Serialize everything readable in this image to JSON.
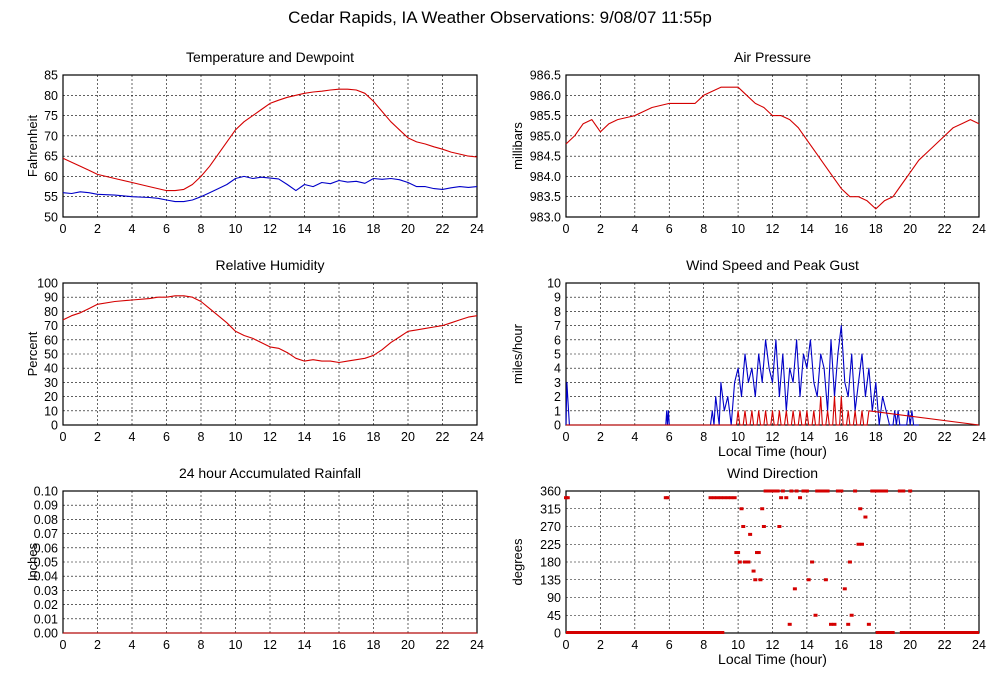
{
  "page_title": "Cedar Rapids, IA Weather Observations: 9/08/07 11:55p",
  "colors": {
    "red": "#d40000",
    "blue": "#0000c8",
    "grid": "#000000"
  },
  "chart_data": [
    {
      "id": "temp",
      "type": "line",
      "title": "Temperature and Dewpoint",
      "xlabel": "",
      "ylabel": "Fahrenheit",
      "xlim": [
        0,
        24
      ],
      "ylim": [
        50,
        85
      ],
      "x_ticks": [
        "0",
        "2",
        "4",
        "6",
        "8",
        "10",
        "12",
        "14",
        "16",
        "18",
        "20",
        "22",
        "24"
      ],
      "y_ticks": [
        "50",
        "55",
        "60",
        "65",
        "70",
        "75",
        "80",
        "85"
      ],
      "grid": true,
      "series": [
        {
          "color": "red",
          "x": [
            0,
            0.5,
            1,
            1.5,
            2,
            3,
            4,
            5,
            5.5,
            6,
            6.5,
            7,
            7.5,
            8,
            8.5,
            9,
            9.5,
            10,
            10.5,
            11,
            11.5,
            12,
            12.5,
            13,
            13.5,
            14,
            14.5,
            15,
            15.5,
            16,
            16.5,
            17,
            17.5,
            18,
            18.5,
            19,
            19.5,
            20,
            20.5,
            21,
            21.5,
            22,
            22.5,
            23,
            23.5,
            24
          ],
          "y": [
            64.5,
            63.5,
            62.5,
            61.5,
            60.5,
            59.5,
            58.5,
            57.5,
            57,
            56.5,
            56.5,
            56.8,
            58,
            60,
            62.5,
            65.5,
            68.5,
            71.5,
            73.5,
            75,
            76.5,
            78,
            78.8,
            79.5,
            80,
            80.5,
            80.8,
            81,
            81.3,
            81.5,
            81.5,
            81.3,
            80.5,
            78.5,
            76,
            73.5,
            71.5,
            69.5,
            68.5,
            68,
            67.3,
            66.7,
            66,
            65.5,
            65,
            64.8
          ]
        },
        {
          "color": "blue",
          "x": [
            0,
            0.5,
            1,
            1.5,
            2,
            3,
            4,
            5,
            5.5,
            6,
            6.5,
            7,
            7.5,
            8,
            8.5,
            9,
            9.5,
            10,
            10.5,
            11,
            11.5,
            12,
            12.5,
            13,
            13.5,
            14,
            14.5,
            15,
            15.5,
            16,
            16.5,
            17,
            17.5,
            18,
            18.5,
            19,
            19.5,
            20,
            20.5,
            21,
            21.5,
            22,
            22.5,
            23,
            23.5,
            24
          ],
          "y": [
            56,
            55.8,
            56.2,
            56,
            55.6,
            55.4,
            55,
            54.8,
            54.6,
            54.2,
            53.8,
            53.8,
            54.2,
            55,
            56,
            57,
            58,
            59.5,
            60,
            59.5,
            59.8,
            59.6,
            59.4,
            58,
            56.5,
            58,
            57.5,
            58.5,
            58.2,
            59,
            58.6,
            58.8,
            58.3,
            59.5,
            59.3,
            59.5,
            59.2,
            58.5,
            57.5,
            57.5,
            57,
            56.8,
            57.2,
            57.5,
            57.3,
            57.5
          ]
        }
      ]
    },
    {
      "id": "pressure",
      "type": "line",
      "title": "Air Pressure",
      "xlabel": "",
      "ylabel": "millibars",
      "xlim": [
        0,
        24
      ],
      "ylim": [
        983.0,
        986.5
      ],
      "x_ticks": [
        "0",
        "2",
        "4",
        "6",
        "8",
        "10",
        "12",
        "14",
        "16",
        "18",
        "20",
        "22",
        "24"
      ],
      "y_ticks": [
        "983.0",
        "983.5",
        "984.0",
        "984.5",
        "985.0",
        "985.5",
        "986.0",
        "986.5"
      ],
      "grid": true,
      "series": [
        {
          "color": "red",
          "x": [
            0,
            0.5,
            1,
            1.5,
            2,
            2.5,
            3,
            4,
            5,
            6,
            7,
            7.5,
            8,
            8.5,
            9,
            9.5,
            10,
            10.5,
            11,
            11.5,
            12,
            12.5,
            13,
            13.5,
            14,
            14.5,
            15,
            15.5,
            16,
            16.5,
            17,
            17.5,
            18,
            18.5,
            19,
            19.5,
            20,
            20.5,
            21,
            21.5,
            22,
            22.5,
            23,
            23.5,
            24
          ],
          "y": [
            984.8,
            985.0,
            985.3,
            985.4,
            985.1,
            985.3,
            985.4,
            985.5,
            985.7,
            985.8,
            985.8,
            985.8,
            986.0,
            986.1,
            986.2,
            986.2,
            986.2,
            986.0,
            985.8,
            985.7,
            985.5,
            985.5,
            985.4,
            985.2,
            984.9,
            984.6,
            984.3,
            984.0,
            983.7,
            983.5,
            983.5,
            983.4,
            983.2,
            983.4,
            983.5,
            983.8,
            984.1,
            984.4,
            984.6,
            984.8,
            985.0,
            985.2,
            985.3,
            985.4,
            985.3
          ]
        }
      ]
    },
    {
      "id": "humidity",
      "type": "line",
      "title": "Relative Humidity",
      "xlabel": "",
      "ylabel": "Percent",
      "xlim": [
        0,
        24
      ],
      "ylim": [
        0,
        100
      ],
      "x_ticks": [
        "0",
        "2",
        "4",
        "6",
        "8",
        "10",
        "12",
        "14",
        "16",
        "18",
        "20",
        "22",
        "24"
      ],
      "y_ticks": [
        "0",
        "10",
        "20",
        "30",
        "40",
        "50",
        "60",
        "70",
        "80",
        "90",
        "100"
      ],
      "grid": true,
      "series": [
        {
          "color": "red",
          "x": [
            0,
            0.5,
            1,
            1.5,
            2,
            3,
            4,
            5,
            5.5,
            6,
            6.5,
            7,
            7.5,
            8,
            8.5,
            9,
            9.5,
            10,
            10.5,
            11,
            11.5,
            12,
            12.5,
            13,
            13.5,
            14,
            14.5,
            15,
            15.5,
            16,
            16.5,
            17,
            17.5,
            18,
            18.5,
            19,
            19.5,
            20,
            20.5,
            21,
            21.5,
            22,
            22.5,
            23,
            23.5,
            24
          ],
          "y": [
            74,
            77,
            79,
            82,
            85,
            87,
            88,
            89,
            90,
            90,
            91,
            91,
            90,
            87,
            82,
            77,
            72,
            66,
            63,
            61,
            58,
            55,
            54,
            51,
            47,
            45,
            46,
            45,
            45,
            44,
            45,
            46,
            47,
            49,
            53,
            58,
            62,
            66,
            67,
            68,
            69,
            70,
            72,
            74,
            76,
            77
          ]
        }
      ]
    },
    {
      "id": "wind",
      "type": "line",
      "title": "Wind Speed and Peak Gust",
      "xlabel": "Local Time (hour)",
      "ylabel": "miles/hour",
      "xlim": [
        0,
        24
      ],
      "ylim": [
        0,
        10
      ],
      "x_ticks": [
        "0",
        "2",
        "4",
        "6",
        "8",
        "10",
        "12",
        "14",
        "16",
        "18",
        "20",
        "22",
        "24"
      ],
      "y_ticks": [
        "0",
        "1",
        "2",
        "3",
        "4",
        "5",
        "6",
        "7",
        "8",
        "9",
        "10"
      ],
      "grid": true,
      "series": [
        {
          "color": "blue",
          "x": [
            0,
            0.05,
            0.1,
            0.2,
            0.25,
            0.5,
            5.8,
            5.85,
            5.9,
            5.95,
            6,
            8.4,
            8.5,
            8.6,
            8.7,
            8.8,
            8.9,
            9,
            9.2,
            9.4,
            9.6,
            9.8,
            10,
            10.2,
            10.4,
            10.6,
            10.8,
            11,
            11.2,
            11.4,
            11.6,
            11.8,
            12,
            12.2,
            12.4,
            12.6,
            12.8,
            13,
            13.2,
            13.4,
            13.6,
            13.8,
            14,
            14.2,
            14.4,
            14.6,
            14.8,
            15,
            15.2,
            15.4,
            15.6,
            15.8,
            16,
            16.2,
            16.4,
            16.6,
            16.8,
            17,
            17.2,
            17.4,
            17.6,
            17.8,
            18,
            18.2,
            18.4,
            18.6,
            18.8,
            19,
            19.1,
            19.2,
            19.3,
            19.4,
            19.8,
            19.9,
            20,
            20.1,
            20.2,
            20.5
          ],
          "y": [
            0,
            3,
            2,
            0,
            0,
            0,
            0,
            1,
            0,
            1,
            0,
            0,
            1,
            0,
            2,
            1,
            0,
            3,
            1,
            2,
            0,
            3,
            4,
            2,
            5,
            3,
            4,
            2,
            5,
            3,
            6,
            4,
            3,
            6,
            2,
            5,
            1,
            4,
            3,
            6,
            2,
            5,
            4,
            6,
            3,
            2,
            5,
            4,
            1,
            6,
            2,
            5,
            7,
            3,
            2,
            5,
            1,
            3,
            5,
            2,
            4,
            1,
            3,
            0,
            2,
            1,
            0,
            0,
            1,
            0,
            1,
            0,
            0,
            1,
            0,
            1,
            0,
            0
          ]
        },
        {
          "color": "red",
          "x": [
            0,
            9.9,
            10,
            10.1,
            10.3,
            10.4,
            10.5,
            10.7,
            10.8,
            10.9,
            11.1,
            11.2,
            11.3,
            11.5,
            11.6,
            11.7,
            11.9,
            12,
            12.1,
            12.3,
            12.4,
            12.5,
            12.7,
            12.8,
            12.9,
            13.1,
            13.2,
            13.3,
            13.5,
            13.6,
            13.7,
            13.9,
            14,
            14.1,
            14.3,
            14.4,
            14.5,
            14.7,
            14.8,
            14.9,
            15.1,
            15.2,
            15.3,
            15.5,
            15.6,
            15.7,
            15.9,
            16,
            16.1,
            16.3,
            16.4,
            16.5,
            16.7,
            16.8,
            16.9,
            17.1,
            17.2,
            17.3,
            17.5,
            17.6,
            24
          ],
          "y": [
            0,
            0,
            1,
            0,
            0,
            1,
            0,
            0,
            1,
            0,
            0,
            1,
            0,
            0,
            1,
            0,
            0,
            1,
            0,
            0,
            1,
            0,
            0,
            1,
            0,
            0,
            1,
            0,
            0,
            1,
            0,
            0,
            1,
            0,
            0,
            1,
            0,
            0,
            2,
            0,
            0,
            1,
            0,
            0,
            2,
            0,
            0,
            2,
            0,
            0,
            1,
            0,
            0,
            1,
            0,
            0,
            1,
            0,
            0,
            1,
            0
          ]
        }
      ]
    },
    {
      "id": "rain",
      "type": "line",
      "title": "24 hour Accumulated Rainfall",
      "xlabel": "",
      "ylabel": "Inches",
      "xlim": [
        0,
        24
      ],
      "ylim": [
        0,
        0.1
      ],
      "x_ticks": [
        "0",
        "2",
        "4",
        "6",
        "8",
        "10",
        "12",
        "14",
        "16",
        "18",
        "20",
        "22",
        "24"
      ],
      "y_ticks": [
        "0.00",
        "0.01",
        "0.02",
        "0.03",
        "0.04",
        "0.05",
        "0.06",
        "0.07",
        "0.08",
        "0.09",
        "0.10"
      ],
      "grid": true,
      "series": [
        {
          "color": "red",
          "x": [
            0,
            24
          ],
          "y": [
            0,
            0
          ]
        }
      ]
    },
    {
      "id": "direction",
      "type": "scatter",
      "title": "Wind Direction",
      "xlabel": "Local Time (hour)",
      "ylabel": "degrees",
      "xlim": [
        0,
        24
      ],
      "ylim": [
        0,
        360
      ],
      "x_ticks": [
        "0",
        "2",
        "4",
        "6",
        "8",
        "10",
        "12",
        "14",
        "16",
        "18",
        "20",
        "22",
        "24"
      ],
      "y_ticks": [
        "0",
        "45",
        "90",
        "135",
        "180",
        "225",
        "270",
        "315",
        "360"
      ],
      "grid": true,
      "series": [
        {
          "color": "red",
          "x": [
            0,
            0.1,
            5.8,
            5.9,
            8.4,
            8.6,
            8.8,
            9,
            9.2,
            9.4,
            9.6,
            9.8,
            9.9,
            10,
            10.1,
            10.2,
            10.3,
            10.4,
            10.6,
            10.7,
            10.9,
            11,
            11.1,
            11.2,
            11.3,
            11.4,
            11.5,
            11.6,
            11.7,
            11.8,
            11.9,
            12,
            12.1,
            12.2,
            12.3,
            12.4,
            12.5,
            12.6,
            12.8,
            13,
            13.1,
            13.3,
            13.4,
            13.6,
            13.8,
            14,
            14.1,
            14.3,
            14.5,
            14.6,
            14.8,
            15,
            15.1,
            15.2,
            15.4,
            15.6,
            15.8,
            16,
            16.2,
            16.4,
            16.5,
            16.6,
            16.8,
            17,
            17.1,
            17.2,
            17.4,
            17.6,
            17.8,
            18,
            18.2,
            18.4,
            18.6,
            19.4,
            19.6,
            20
          ],
          "y": [
            343,
            343,
            343,
            343,
            343,
            343,
            343,
            343,
            343,
            343,
            343,
            343,
            204,
            204,
            180,
            315,
            270,
            180,
            180,
            250,
            157,
            135,
            204,
            204,
            135,
            315,
            270,
            360,
            360,
            360,
            360,
            360,
            360,
            360,
            360,
            270,
            343,
            360,
            343,
            22,
            360,
            112,
            360,
            343,
            360,
            360,
            135,
            180,
            45,
            360,
            360,
            360,
            135,
            360,
            22,
            22,
            360,
            360,
            112,
            22,
            180,
            45,
            360,
            225,
            315,
            225,
            294,
            22,
            360,
            360,
            360,
            360,
            360,
            360,
            360,
            360
          ]
        },
        {
          "color": "red",
          "x": [
            0,
            9.2
          ],
          "y": [
            0,
            0
          ],
          "style": "band"
        }
      ]
    }
  ]
}
